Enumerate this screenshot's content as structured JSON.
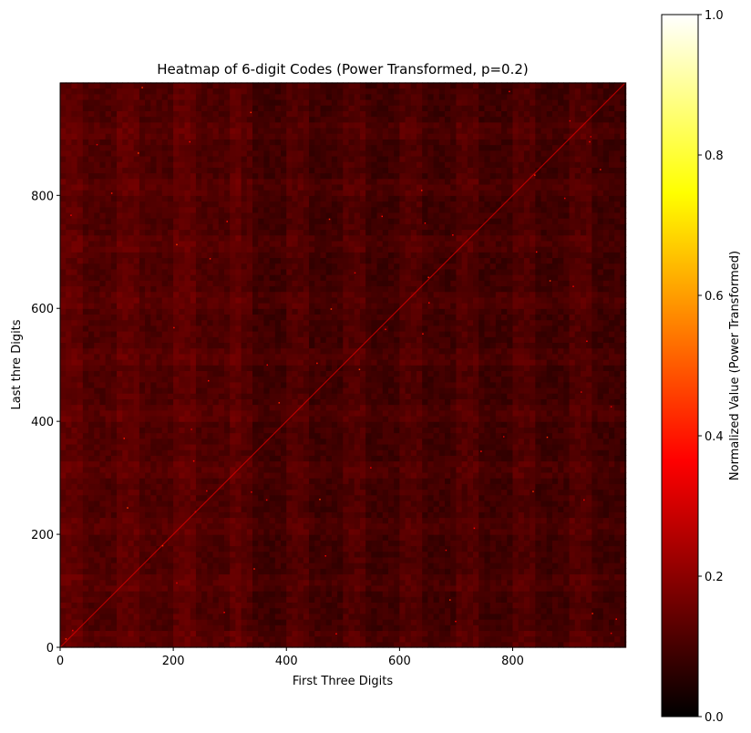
{
  "chart_data": {
    "type": "heatmap",
    "title": "Heatmap of 6-digit Codes (Power Transformed, p=0.2)",
    "xlabel": "First Three Digits",
    "ylabel": "Last thre Digits",
    "xlim": [
      0,
      999
    ],
    "ylim": [
      0,
      999
    ],
    "x_ticks": [
      0,
      200,
      400,
      600,
      800
    ],
    "y_ticks": [
      0,
      200,
      400,
      600,
      800
    ],
    "origin": "lower",
    "colormap": "hot",
    "colorbar": {
      "label": "Normalized Value (Power Transformed)",
      "range": [
        0,
        1
      ],
      "ticks": [
        "0.0",
        "0.2",
        "0.4",
        "0.6",
        "0.8",
        "1.0"
      ]
    },
    "typical_value_range": [
      0.05,
      0.16
    ],
    "features": [
      {
        "name": "diagonal",
        "description": "first three digits equal last three digits",
        "value": 0.3
      },
      {
        "name": "isolated-bright-cells",
        "value": 0.45
      }
    ]
  }
}
